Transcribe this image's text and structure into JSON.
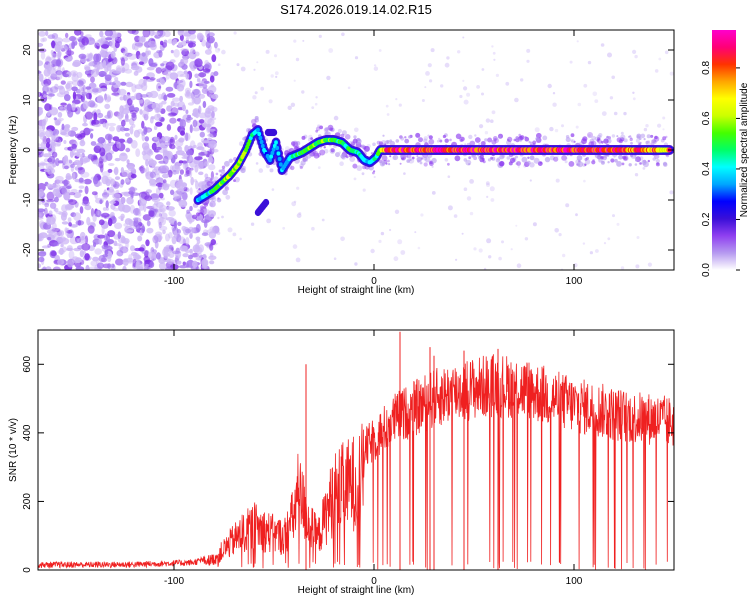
{
  "title": "S174.2026.019.14.02.R15",
  "chart_data": [
    {
      "type": "heatmap",
      "xlabel": "Height of straight line (km)",
      "ylabel": "Frequency (Hz)",
      "xlim": [
        -168,
        150
      ],
      "ylim": [
        -24,
        24
      ],
      "xticks": [
        -100,
        0,
        100
      ],
      "xtick_labels": [
        "-100",
        "0",
        "100"
      ],
      "yticks": [
        -20,
        -10,
        0,
        10,
        20
      ],
      "ytick_labels": [
        "-20",
        "-10",
        "0",
        "10",
        "20"
      ],
      "colorbar": {
        "label": "Normalized spectral amplitude",
        "range": [
          0,
          0.95
        ],
        "ticks": [
          0,
          0.2,
          0.4,
          0.6,
          0.8
        ],
        "tick_labels": [
          "0.0",
          "0.2",
          "0.4",
          "0.6",
          "0.8"
        ],
        "colormap": [
          "#ffffff",
          "#b69af0",
          "#8f3ff0",
          "#3a0fd8",
          "#0000ff",
          "#00a6ff",
          "#00ffff",
          "#00ff66",
          "#44ff00",
          "#ccff00",
          "#ffff00",
          "#ffa500",
          "#ff3300",
          "#ff0077",
          "#ff00cc"
        ]
      },
      "noise_region_x": [
        -168,
        -83
      ],
      "ridge": {
        "x": [
          -88,
          -84,
          -80,
          -76,
          -72,
          -68,
          -64,
          -61,
          -58,
          -55,
          -52,
          -49,
          -46,
          -42,
          -39,
          -36,
          -32,
          -28,
          -24,
          -20,
          -16,
          -12,
          -8,
          -5,
          -2,
          1,
          3,
          6,
          10,
          20,
          40,
          60,
          80,
          100,
          120,
          140,
          148
        ],
        "y": [
          -10,
          -9,
          -8,
          -6.5,
          -5,
          -3,
          0,
          3,
          4,
          0,
          -2,
          1.5,
          -4,
          -1.5,
          -1,
          -0.5,
          0.5,
          1.5,
          2,
          2,
          1.5,
          0,
          -0.5,
          -2,
          -2.5,
          -1.5,
          0,
          0,
          0,
          0,
          0,
          0,
          0,
          0,
          0,
          0,
          0
        ],
        "amplitude": [
          0.35,
          0.4,
          0.5,
          0.55,
          0.6,
          0.6,
          0.55,
          0.45,
          0.4,
          0.35,
          0.35,
          0.4,
          0.35,
          0.4,
          0.45,
          0.5,
          0.55,
          0.55,
          0.55,
          0.5,
          0.5,
          0.5,
          0.45,
          0.4,
          0.35,
          0.45,
          0.6,
          0.8,
          0.85,
          0.85,
          0.85,
          0.85,
          0.85,
          0.85,
          0.85,
          0.75,
          0.7
        ]
      },
      "secondary_tracks": [
        {
          "x": [
            -58,
            -54
          ],
          "y": [
            -12.5,
            -10.5
          ]
        },
        {
          "x": [
            -53,
            -50
          ],
          "y": [
            3.5,
            3.5
          ]
        }
      ]
    },
    {
      "type": "line",
      "xlabel": "Height of straight line (km)",
      "ylabel": "SNR (10 * v/v)",
      "xlim": [
        -168,
        150
      ],
      "ylim": [
        0,
        700
      ],
      "xticks": [
        -100,
        0,
        100
      ],
      "xtick_labels": [
        "-100",
        "0",
        "100"
      ],
      "yticks": [
        0,
        200,
        400,
        600
      ],
      "ytick_labels": [
        "0",
        "200",
        "400",
        "600"
      ],
      "series": [
        {
          "color": "#ef2020",
          "envelope": {
            "x": [
              -168,
              -120,
              -90,
              -80,
              -70,
              -60,
              -50,
              -45,
              -40,
              -38,
              -35,
              -32,
              -28,
              -24,
              -20,
              -10,
              0,
              10,
              20,
              30,
              40,
              50,
              60,
              70,
              80,
              90,
              100,
              110,
              120,
              130,
              140,
              150
            ],
            "y": [
              15,
              16,
              22,
              40,
              110,
              160,
              130,
              120,
              200,
              280,
              230,
              160,
              120,
              200,
              280,
              320,
              380,
              440,
              470,
              500,
              520,
              530,
              540,
              535,
              520,
              500,
              480,
              470,
              455,
              445,
              440,
              430
            ]
          },
          "spikes": [
            {
              "x": -34,
              "y": 600
            },
            {
              "x": 13,
              "y": 695
            },
            {
              "x": 28,
              "y": 650
            },
            {
              "x": 62,
              "y": 645
            },
            {
              "x": 45,
              "y": 640
            },
            {
              "x": 30,
              "y": 625
            }
          ]
        }
      ]
    }
  ]
}
